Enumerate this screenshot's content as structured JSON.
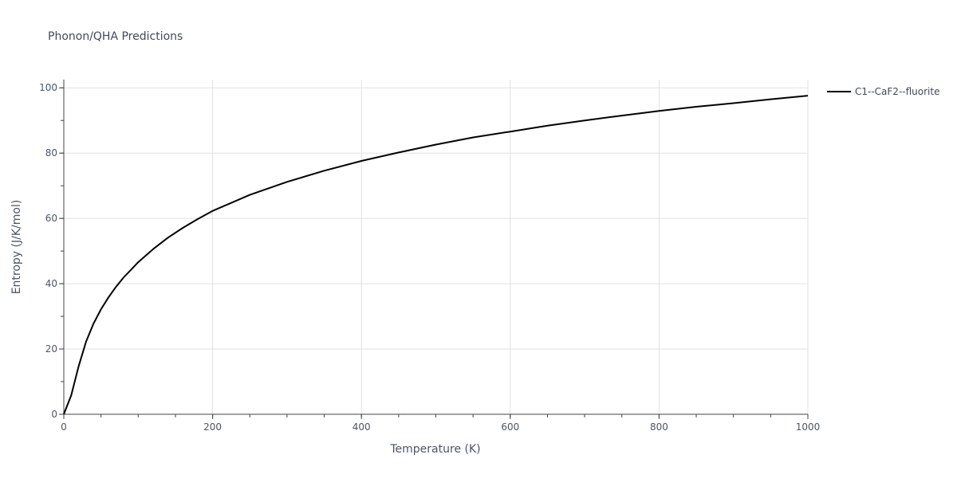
{
  "chart_data": {
    "type": "line",
    "title": "Phonon/QHA Predictions",
    "xlabel": "Temperature (K)",
    "ylabel": "Entropy (J/K/mol)",
    "xlim": [
      0,
      1000
    ],
    "ylim": [
      0,
      102.5
    ],
    "x_ticks": [
      0,
      200,
      400,
      600,
      800,
      1000
    ],
    "x_tick_labels": [
      "0",
      "200",
      "400",
      "600",
      "800",
      "1000"
    ],
    "y_ticks": [
      0,
      20,
      40,
      60,
      80,
      100
    ],
    "y_tick_labels": [
      "0",
      "20",
      "40",
      "60",
      "80",
      "100"
    ],
    "grid": true,
    "legend_position": "top-right",
    "series": [
      {
        "name": "C1--CaF2--fluorite",
        "color": "#000000",
        "x": [
          0,
          10,
          20,
          30,
          40,
          50,
          60,
          70,
          80,
          90,
          100,
          120,
          140,
          160,
          180,
          200,
          250,
          300,
          350,
          400,
          450,
          500,
          550,
          600,
          650,
          700,
          750,
          800,
          850,
          900,
          950,
          1000
        ],
        "y": [
          0,
          5.8,
          14.8,
          22.3,
          27.8,
          32.2,
          35.8,
          39.0,
          41.8,
          44.2,
          46.6,
          50.6,
          54.1,
          57.1,
          59.8,
          62.3,
          67.2,
          71.2,
          74.6,
          77.6,
          80.2,
          82.6,
          84.8,
          86.6,
          88.4,
          90.0,
          91.5,
          92.9,
          94.2,
          95.3,
          96.5,
          97.6
        ]
      }
    ]
  }
}
